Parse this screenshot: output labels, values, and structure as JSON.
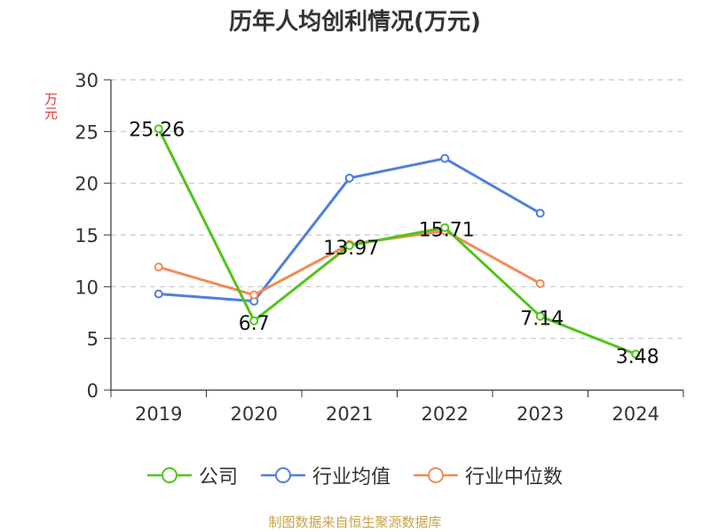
{
  "title": "历年人均创利情况(万元)",
  "footer": "制图数据来自恒生聚源数据库",
  "chart_data": {
    "type": "line",
    "title": "历年人均创利情况(万元)",
    "ylabel": "万元",
    "ylim": [
      0,
      30
    ],
    "yticks": [
      0,
      5,
      10,
      15,
      20,
      25,
      30
    ],
    "categories": [
      "2019",
      "2020",
      "2021",
      "2022",
      "2023",
      "2024"
    ],
    "grid": true,
    "legend_position": "bottom",
    "series": [
      {
        "name": "公司",
        "color": "#52c41a",
        "values": [
          25.26,
          6.7,
          13.97,
          15.71,
          7.14,
          3.48
        ],
        "labels": [
          "25.26",
          "6.7",
          "13.97",
          "15.71",
          "7.14",
          "3.48"
        ]
      },
      {
        "name": "行业均值",
        "color": "#4f7fd9",
        "values": [
          9.3,
          8.6,
          20.5,
          22.4,
          17.1,
          null
        ]
      },
      {
        "name": "行业中位数",
        "color": "#f28b54",
        "values": [
          11.9,
          9.2,
          14.1,
          15.4,
          10.3,
          null
        ]
      }
    ]
  }
}
